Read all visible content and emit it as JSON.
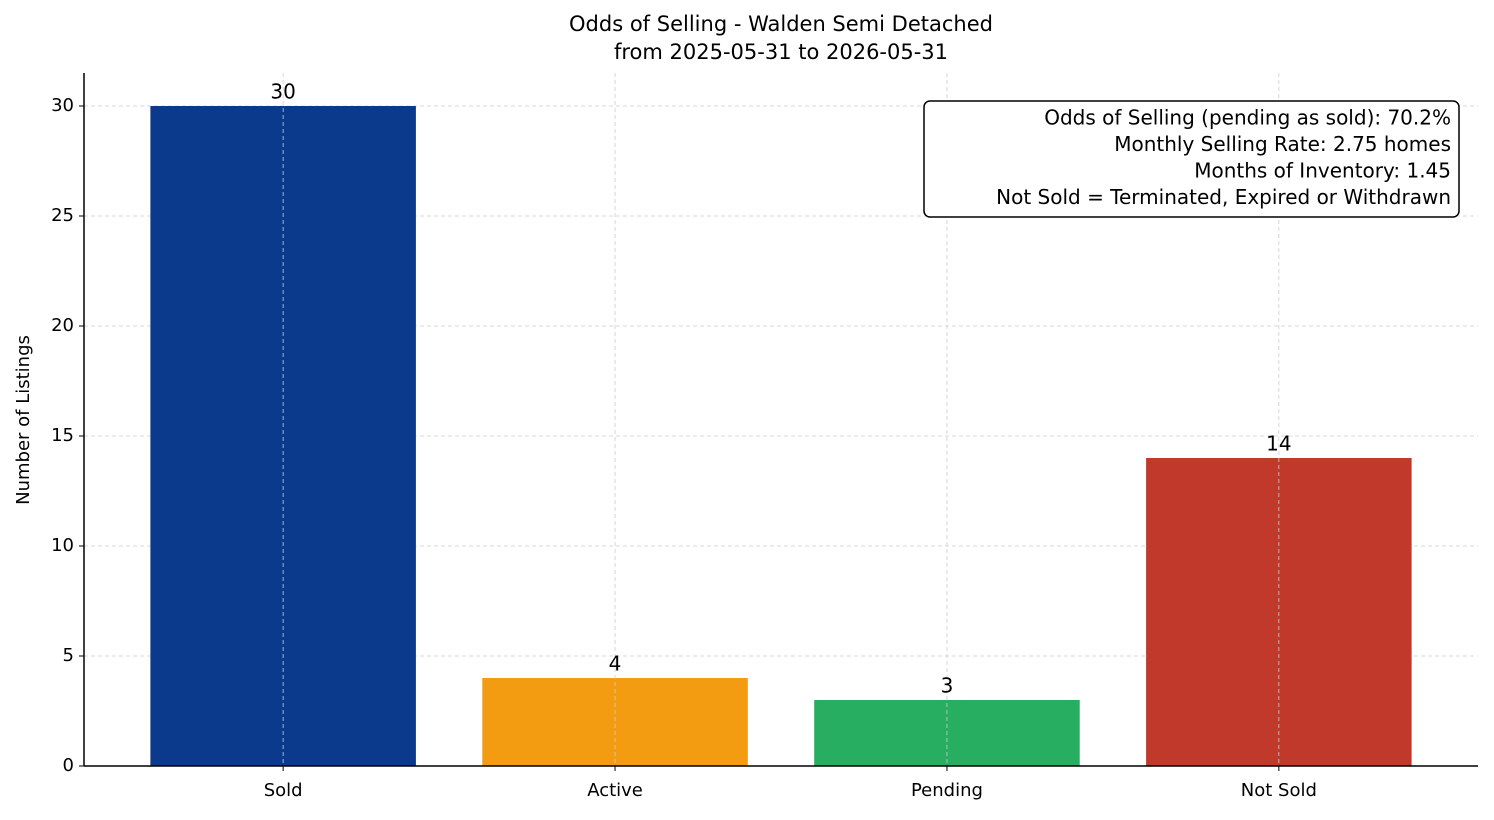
{
  "chart_data": {
    "type": "bar",
    "title": "Odds of Selling - Walden Semi Detached",
    "subtitle": "from 2025-05-31 to 2026-05-31",
    "y_label": "Number of Listings",
    "categories": [
      "Sold",
      "Active",
      "Pending",
      "Not Sold"
    ],
    "values": [
      30,
      4,
      3,
      14
    ],
    "colors": [
      "#0b3a8c",
      "#f39c12",
      "#27ae60",
      "#c0392b"
    ],
    "ylim": [
      0,
      31.5
    ],
    "yticks": [
      0,
      5,
      10,
      15,
      20,
      25,
      30
    ],
    "grid": true,
    "annotations": [
      "Odds of Selling (pending as sold): 70.2%",
      "Monthly Selling Rate: 2.75 homes",
      "Months of Inventory: 1.45",
      "Not Sold = Terminated, Expired or Withdrawn"
    ]
  }
}
